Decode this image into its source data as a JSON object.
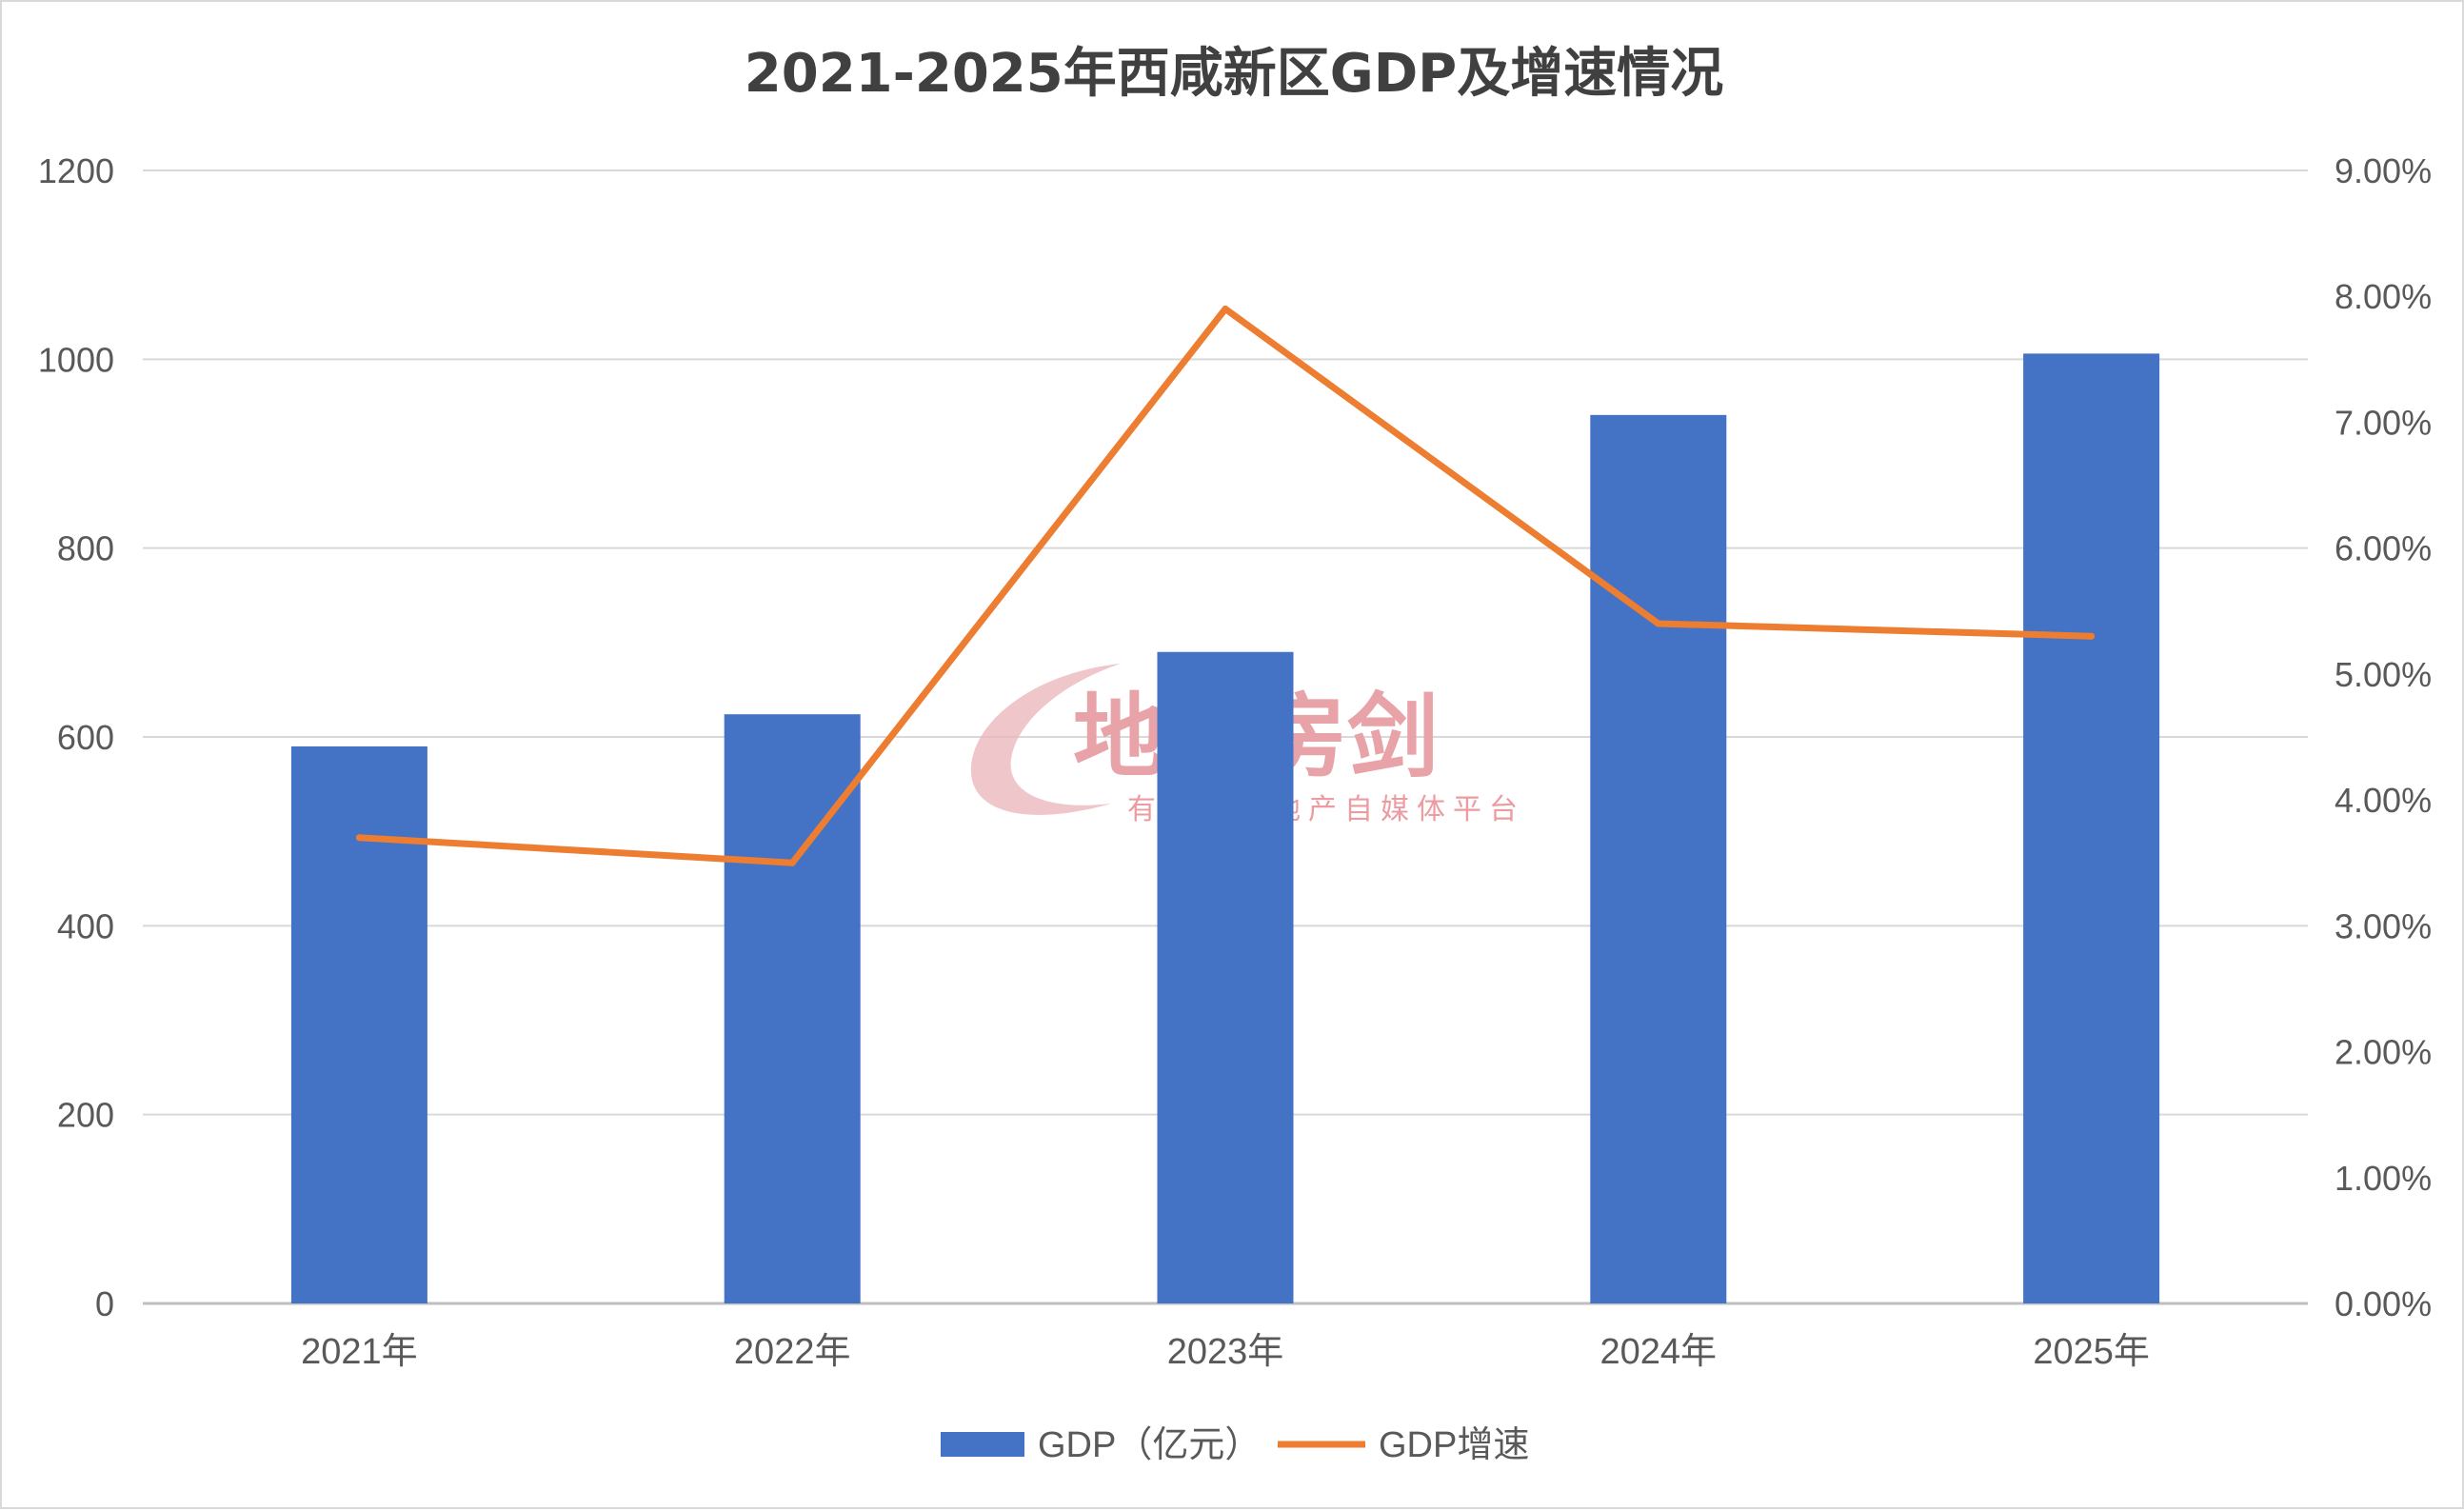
{
  "chart_data": {
    "type": "bar",
    "title": "2021-2025年西咸新区GDP及增速情况",
    "categories": [
      "2021年",
      "2022年",
      "2023年",
      "2024年",
      "2025年"
    ],
    "series": [
      {
        "name": "GDP（亿元）",
        "type": "bar",
        "axis": "left",
        "color": "#4472c4",
        "values": [
          590,
          624,
          690,
          941,
          1006
        ]
      },
      {
        "name": "GDP增速",
        "type": "line",
        "axis": "right",
        "color": "#ed7d31",
        "values": [
          0.037,
          0.035,
          0.079,
          0.054,
          0.053
        ]
      }
    ],
    "left_axis": {
      "ylim": [
        0,
        1200
      ],
      "ticks": [
        "0",
        "200",
        "400",
        "600",
        "800",
        "1000",
        "1200"
      ]
    },
    "right_axis": {
      "ylim": [
        0,
        0.09
      ],
      "ticks": [
        "0.00%",
        "1.00%",
        "2.00%",
        "3.00%",
        "4.00%",
        "5.00%",
        "6.00%",
        "7.00%",
        "8.00%",
        "9.00%"
      ]
    },
    "grid": true,
    "legend": {
      "position": "bottom"
    }
  },
  "watermark": {
    "main": "地产房剑",
    "sub": "有态度的地产自媒体平台"
  }
}
